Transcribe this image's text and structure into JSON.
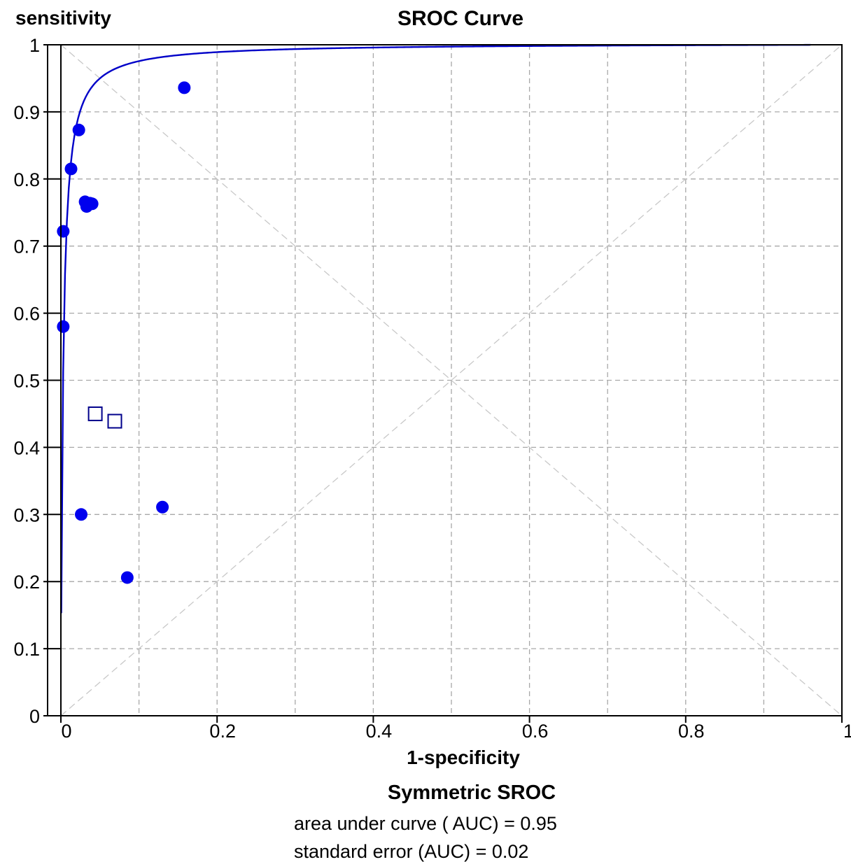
{
  "chart_data": {
    "type": "scatter",
    "title": "SROC Curve",
    "ylabel": "sensitivity",
    "xlabel": "1-specificity",
    "xlim": [
      0,
      1
    ],
    "ylim": [
      0,
      1
    ],
    "x_ticks": [
      "0",
      "0.2",
      "0.4",
      "0.6",
      "0.8",
      "1"
    ],
    "y_ticks": [
      "0",
      "0.1",
      "0.2",
      "0.3",
      "0.4",
      "0.5",
      "0.6",
      "0.7",
      "0.8",
      "0.9",
      "1"
    ],
    "grid": true,
    "grid_step_x": 0.1,
    "grid_step_y": 0.1,
    "diagonals": true,
    "curve": {
      "label": "Symmetric SROC",
      "auc": 0.95,
      "auc_se": 0.02,
      "color": "#0000c8"
    },
    "series": [
      {
        "marker": "filled-circle",
        "color": "#0000ee",
        "points": [
          {
            "x": 0.003,
            "y": 0.722
          },
          {
            "x": 0.003,
            "y": 0.58
          },
          {
            "x": 0.013,
            "y": 0.815
          },
          {
            "x": 0.023,
            "y": 0.873
          },
          {
            "x": 0.026,
            "y": 0.3
          },
          {
            "x": 0.031,
            "y": 0.766
          },
          {
            "x": 0.033,
            "y": 0.759
          },
          {
            "x": 0.037,
            "y": 0.764
          },
          {
            "x": 0.04,
            "y": 0.763
          },
          {
            "x": 0.085,
            "y": 0.206
          },
          {
            "x": 0.13,
            "y": 0.311
          },
          {
            "x": 0.158,
            "y": 0.936
          }
        ]
      },
      {
        "marker": "open-square",
        "color": "#00008b",
        "points": [
          {
            "x": 0.044,
            "y": 0.45
          },
          {
            "x": 0.069,
            "y": 0.439
          }
        ]
      }
    ]
  },
  "stats": {
    "method": "Symmetric SROC",
    "auc_label": "area under curve ( AUC) = 0.95",
    "se_label": "standard error (AUC) = 0.02"
  }
}
